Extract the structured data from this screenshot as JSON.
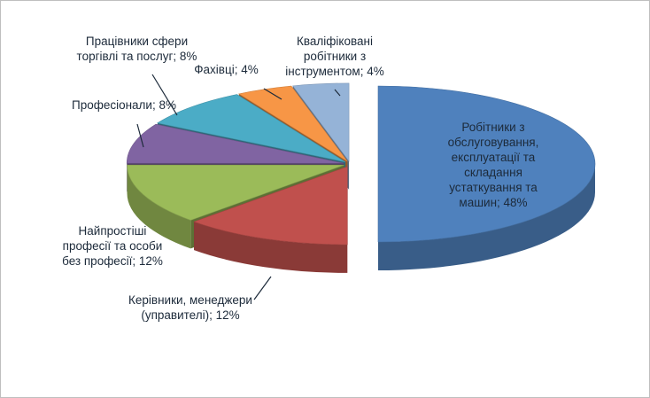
{
  "chart_data": {
    "type": "pie3d",
    "values": [
      48,
      12,
      12,
      8,
      8,
      4,
      4
    ],
    "value_labels": [
      "Робітники з обслуговування, експлуатації та складання устаткування та машин; 48%",
      "Керівники, менеджери (управителі); 12%",
      "Найпростіші професії та особи без професії; 12%",
      "Професіонали; 8%",
      "Працівники сфери торгівлі та послуг; 8%",
      "Фахівці; 4%",
      "Кваліфіковані робітники з інструментом; 4%"
    ],
    "colors": [
      "#4f81bd",
      "#c0504d",
      "#9bbb59",
      "#8064a2",
      "#4bacc6",
      "#f79646",
      "#95b3d7"
    ]
  }
}
